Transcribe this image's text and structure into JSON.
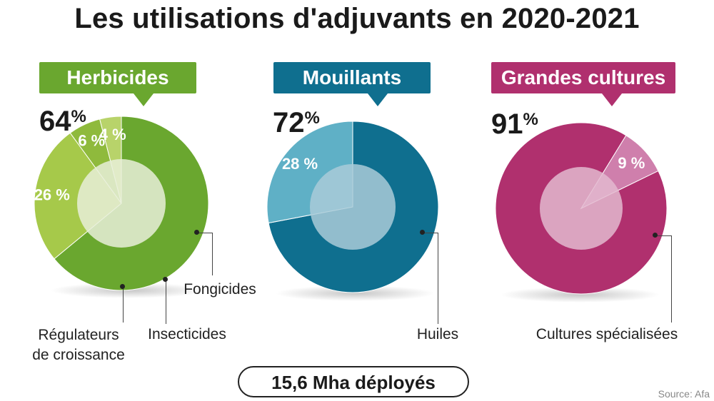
{
  "title": "Les utilisations d'adjuvants en 2020-2021",
  "footer": "15,6 Mha déployés",
  "source": "Source: Afa",
  "chart_data": [
    {
      "type": "pie",
      "title": "Herbicides",
      "headline": {
        "value": "64",
        "sign": "%"
      },
      "slices": [
        {
          "name": "Herbicides",
          "value": 64,
          "label": "",
          "color": "#6aa72f"
        },
        {
          "name": "Fongicides",
          "value": 26,
          "label": "26 %",
          "color": "#a6c94a"
        },
        {
          "name": "Insecticides",
          "value": 6,
          "label": "6 %",
          "color": "#8fba3c"
        },
        {
          "name": "Régulateurs de croissance",
          "value": 4,
          "label": "4 %",
          "color": "#b8d36a"
        }
      ],
      "annotations": [
        "Fongicides",
        "Insecticides",
        "Régulateurs",
        "de croissance"
      ]
    },
    {
      "type": "pie",
      "title": "Mouillants",
      "headline": {
        "value": "72",
        "sign": "%"
      },
      "slices": [
        {
          "name": "Mouillants",
          "value": 72,
          "label": "",
          "color": "#0f6f8f"
        },
        {
          "name": "Huiles",
          "value": 28,
          "label": "28 %",
          "color": "#5fb0c6"
        }
      ],
      "annotations": [
        "Huiles"
      ]
    },
    {
      "type": "pie",
      "title": "Grandes cultures",
      "headline": {
        "value": "91",
        "sign": "%"
      },
      "slices": [
        {
          "name": "Grandes cultures",
          "value": 91,
          "label": "",
          "color": "#b0306e"
        },
        {
          "name": "Cultures spécialisées",
          "value": 9,
          "label": "9 %",
          "color": "#cf7fac"
        }
      ],
      "annotations": [
        "Cultures spécialisées"
      ]
    }
  ],
  "colors": {
    "herbicides_callout": "#6aa72f",
    "mouillants_callout": "#0f6f8f",
    "cultures_callout": "#b0306e",
    "inner_circle": "#e8efd8",
    "inner_circle_blue": "#a9cbd8",
    "inner_circle_pink": "#e3b9cf"
  }
}
